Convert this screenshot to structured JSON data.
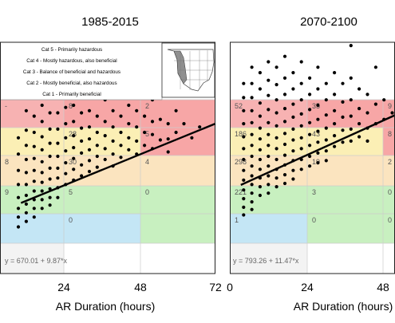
{
  "chart_data": [
    {
      "type": "scatter",
      "title": "1985-2015",
      "xlabel": "AR Duration (hours)",
      "ylabel": "",
      "xticks": [
        "24",
        "48",
        "72"
      ],
      "xlim": [
        -10,
        72
      ],
      "ylim": [
        0,
        2130
      ],
      "regression": {
        "label": "y = 670.01 + 9.87*x",
        "intercept": 670.01,
        "slope": 9.87
      },
      "legend": {
        "placement": "top-left",
        "entries": [
          "Cat 5 - Primarily hazardous",
          "Cat 4 - Mostly hazardous, also beneficial",
          "Cat 3 - Balance of beneficial and hazardous",
          "Cat 2 - Mostly beneficial, also hazardous",
          "Cat 1 - Primarily beneficial"
        ]
      },
      "cell_counts": [
        {
          "row": 5,
          "col": 0,
          "label": "-",
          "x": -9
        },
        {
          "row": 5,
          "col": 1,
          "label": "8",
          "x": 24
        },
        {
          "row": 5,
          "col": 2,
          "label": "2",
          "x": 48
        },
        {
          "row": 4,
          "col": 1,
          "label": "28",
          "x": 24
        },
        {
          "row": 4,
          "col": 2,
          "label": "5",
          "x": 48
        },
        {
          "row": 3,
          "col": 0,
          "label": "8",
          "x": -9
        },
        {
          "row": 3,
          "col": 1,
          "label": "30",
          "x": 24
        },
        {
          "row": 3,
          "col": 2,
          "label": "4",
          "x": 48
        },
        {
          "row": 2,
          "col": 0,
          "label": "9",
          "x": -9
        },
        {
          "row": 2,
          "col": 1,
          "label": "5",
          "x": 24
        },
        {
          "row": 2,
          "col": 2,
          "label": "0",
          "x": 48
        },
        {
          "row": 1,
          "col": 1,
          "label": "0",
          "x": 24
        }
      ],
      "points": [
        [
          -3,
          1250
        ],
        [
          -3,
          1100
        ],
        [
          -3,
          950
        ],
        [
          -3,
          820
        ],
        [
          -3,
          700
        ],
        [
          -3,
          600
        ],
        [
          -3,
          520
        ],
        [
          -3,
          430
        ],
        [
          0,
          1700
        ],
        [
          0,
          1500
        ],
        [
          0,
          1320
        ],
        [
          0,
          1180
        ],
        [
          0,
          1050
        ],
        [
          0,
          930
        ],
        [
          0,
          820
        ],
        [
          0,
          720
        ],
        [
          0,
          640
        ],
        [
          0,
          560
        ],
        [
          0,
          480
        ],
        [
          3,
          1850
        ],
        [
          3,
          1650
        ],
        [
          3,
          1450
        ],
        [
          3,
          1300
        ],
        [
          3,
          1170
        ],
        [
          3,
          1060
        ],
        [
          3,
          950
        ],
        [
          3,
          850
        ],
        [
          3,
          760
        ],
        [
          3,
          680
        ],
        [
          3,
          600
        ],
        [
          3,
          520
        ],
        [
          6,
          1750
        ],
        [
          6,
          1550
        ],
        [
          6,
          1400
        ],
        [
          6,
          1260
        ],
        [
          6,
          1140
        ],
        [
          6,
          1030
        ],
        [
          6,
          930
        ],
        [
          6,
          840
        ],
        [
          6,
          760
        ],
        [
          6,
          680
        ],
        [
          6,
          600
        ],
        [
          9,
          1850
        ],
        [
          9,
          1650
        ],
        [
          9,
          1480
        ],
        [
          9,
          1330
        ],
        [
          9,
          1200
        ],
        [
          9,
          1080
        ],
        [
          9,
          970
        ],
        [
          9,
          870
        ],
        [
          9,
          780
        ],
        [
          9,
          700
        ],
        [
          9,
          630
        ],
        [
          12,
          1650
        ],
        [
          12,
          1480
        ],
        [
          12,
          1330
        ],
        [
          12,
          1200
        ],
        [
          12,
          1080
        ],
        [
          12,
          970
        ],
        [
          12,
          880
        ],
        [
          12,
          790
        ],
        [
          12,
          700
        ],
        [
          15,
          1700
        ],
        [
          15,
          1530
        ],
        [
          15,
          1380
        ],
        [
          15,
          1250
        ],
        [
          15,
          1130
        ],
        [
          15,
          1020
        ],
        [
          15,
          920
        ],
        [
          15,
          820
        ],
        [
          18,
          1550
        ],
        [
          18,
          1400
        ],
        [
          18,
          1270
        ],
        [
          18,
          1160
        ],
        [
          18,
          1060
        ],
        [
          18,
          960
        ],
        [
          18,
          860
        ],
        [
          21,
          1650
        ],
        [
          21,
          1480
        ],
        [
          21,
          1340
        ],
        [
          21,
          1220
        ],
        [
          21,
          1110
        ],
        [
          21,
          1000
        ],
        [
          21,
          900
        ],
        [
          24,
          1500
        ],
        [
          24,
          1350
        ],
        [
          24,
          1240
        ],
        [
          24,
          1140
        ],
        [
          24,
          1040
        ],
        [
          24,
          940
        ],
        [
          27,
          1700
        ],
        [
          27,
          1450
        ],
        [
          27,
          1300
        ],
        [
          27,
          1180
        ],
        [
          27,
          1080
        ],
        [
          27,
          980
        ],
        [
          30,
          1600
        ],
        [
          30,
          1400
        ],
        [
          30,
          1270
        ],
        [
          30,
          1150
        ],
        [
          30,
          1050
        ],
        [
          33,
          1500
        ],
        [
          33,
          1350
        ],
        [
          33,
          1220
        ],
        [
          33,
          1100
        ],
        [
          33,
          990
        ],
        [
          36,
          1650
        ],
        [
          36,
          1450
        ],
        [
          36,
          1300
        ],
        [
          36,
          1180
        ],
        [
          36,
          1070
        ],
        [
          39,
          1550
        ],
        [
          39,
          1380
        ],
        [
          39,
          1250
        ],
        [
          39,
          1140
        ],
        [
          42,
          1800
        ],
        [
          42,
          1500
        ],
        [
          42,
          1350
        ],
        [
          42,
          1220
        ],
        [
          42,
          1100
        ],
        [
          45,
          1450
        ],
        [
          45,
          1300
        ],
        [
          45,
          1180
        ],
        [
          48,
          1600
        ],
        [
          48,
          1400
        ],
        [
          48,
          1280
        ],
        [
          48,
          1150
        ],
        [
          51,
          1700
        ],
        [
          51,
          1420
        ],
        [
          51,
          1230
        ],
        [
          54,
          1380
        ],
        [
          54,
          1240
        ],
        [
          54,
          1120
        ],
        [
          57,
          1500
        ],
        [
          57,
          1300
        ],
        [
          60,
          1650
        ],
        [
          60,
          1380
        ],
        [
          63,
          1250
        ],
        [
          66,
          1350
        ]
      ]
    },
    {
      "type": "scatter",
      "title": "2070-2100",
      "xlabel": "AR Duration (hours)",
      "ylabel": "",
      "xticks": [
        "0",
        "24",
        "48"
      ],
      "xlim": [
        -2,
        58
      ],
      "ylim": [
        0,
        2130
      ],
      "regression": {
        "label": "y = 793.26 + 11.47*x",
        "intercept": 793.26,
        "slope": 11.47
      },
      "cell_counts": [
        {
          "row": 5,
          "col": 0,
          "label": "52",
          "x": 0
        },
        {
          "row": 5,
          "col": 1,
          "label": "35",
          "x": 24
        },
        {
          "row": 5,
          "col": 2,
          "label": "9",
          "x": 48
        },
        {
          "row": 4,
          "col": 0,
          "label": "186",
          "x": 0
        },
        {
          "row": 4,
          "col": 1,
          "label": "43",
          "x": 24
        },
        {
          "row": 4,
          "col": 2,
          "label": "8",
          "x": 48
        },
        {
          "row": 3,
          "col": 0,
          "label": "298",
          "x": 0
        },
        {
          "row": 3,
          "col": 1,
          "label": "19",
          "x": 24
        },
        {
          "row": 3,
          "col": 2,
          "label": "2",
          "x": 48
        },
        {
          "row": 2,
          "col": 0,
          "label": "221",
          "x": 0
        },
        {
          "row": 2,
          "col": 1,
          "label": "3",
          "x": 24
        },
        {
          "row": 2,
          "col": 2,
          "label": "0",
          "x": 48
        },
        {
          "row": 1,
          "col": 0,
          "label": "1",
          "x": 0
        },
        {
          "row": 1,
          "col": 1,
          "label": "0",
          "x": 24
        },
        {
          "row": 1,
          "col": 2,
          "label": "0",
          "x": 48
        }
      ],
      "points": [
        [
          3,
          1750
        ],
        [
          3,
          1620
        ],
        [
          3,
          1500
        ],
        [
          3,
          1380
        ],
        [
          3,
          1260
        ],
        [
          3,
          1150
        ],
        [
          3,
          1050
        ],
        [
          3,
          950
        ],
        [
          3,
          860
        ],
        [
          3,
          770
        ],
        [
          3,
          690
        ],
        [
          3,
          610
        ],
        [
          3,
          540
        ],
        [
          6,
          1900
        ],
        [
          6,
          1750
        ],
        [
          6,
          1620
        ],
        [
          6,
          1500
        ],
        [
          6,
          1390
        ],
        [
          6,
          1280
        ],
        [
          6,
          1180
        ],
        [
          6,
          1080
        ],
        [
          6,
          990
        ],
        [
          6,
          900
        ],
        [
          6,
          820
        ],
        [
          6,
          740
        ],
        [
          6,
          660
        ],
        [
          6,
          590
        ],
        [
          9,
          1850
        ],
        [
          9,
          1700
        ],
        [
          9,
          1570
        ],
        [
          9,
          1450
        ],
        [
          9,
          1340
        ],
        [
          9,
          1240
        ],
        [
          9,
          1140
        ],
        [
          9,
          1050
        ],
        [
          9,
          960
        ],
        [
          9,
          880
        ],
        [
          9,
          800
        ],
        [
          9,
          720
        ],
        [
          12,
          1950
        ],
        [
          12,
          1780
        ],
        [
          12,
          1640
        ],
        [
          12,
          1510
        ],
        [
          12,
          1390
        ],
        [
          12,
          1280
        ],
        [
          12,
          1180
        ],
        [
          12,
          1080
        ],
        [
          12,
          990
        ],
        [
          12,
          900
        ],
        [
          12,
          820
        ],
        [
          12,
          740
        ],
        [
          15,
          1900
        ],
        [
          15,
          1740
        ],
        [
          15,
          1600
        ],
        [
          15,
          1480
        ],
        [
          15,
          1360
        ],
        [
          15,
          1250
        ],
        [
          15,
          1150
        ],
        [
          15,
          1050
        ],
        [
          15,
          960
        ],
        [
          15,
          880
        ],
        [
          15,
          800
        ],
        [
          18,
          2000
        ],
        [
          18,
          1800
        ],
        [
          18,
          1650
        ],
        [
          18,
          1520
        ],
        [
          18,
          1400
        ],
        [
          18,
          1290
        ],
        [
          18,
          1190
        ],
        [
          18,
          1090
        ],
        [
          18,
          1000
        ],
        [
          18,
          910
        ],
        [
          18,
          830
        ],
        [
          21,
          1850
        ],
        [
          21,
          1700
        ],
        [
          21,
          1560
        ],
        [
          21,
          1440
        ],
        [
          21,
          1330
        ],
        [
          21,
          1230
        ],
        [
          21,
          1130
        ],
        [
          21,
          1040
        ],
        [
          21,
          950
        ],
        [
          21,
          870
        ],
        [
          24,
          1950
        ],
        [
          24,
          1750
        ],
        [
          24,
          1600
        ],
        [
          24,
          1470
        ],
        [
          24,
          1360
        ],
        [
          24,
          1250
        ],
        [
          24,
          1150
        ],
        [
          24,
          1050
        ],
        [
          24,
          960
        ],
        [
          27,
          1800
        ],
        [
          27,
          1650
        ],
        [
          27,
          1510
        ],
        [
          27,
          1390
        ],
        [
          27,
          1280
        ],
        [
          27,
          1180
        ],
        [
          27,
          1080
        ],
        [
          27,
          990
        ],
        [
          30,
          1900
        ],
        [
          30,
          1700
        ],
        [
          30,
          1550
        ],
        [
          30,
          1420
        ],
        [
          30,
          1310
        ],
        [
          30,
          1210
        ],
        [
          30,
          1110
        ],
        [
          30,
          1020
        ],
        [
          33,
          1750
        ],
        [
          33,
          1600
        ],
        [
          33,
          1460
        ],
        [
          33,
          1340
        ],
        [
          33,
          1230
        ],
        [
          33,
          1130
        ],
        [
          33,
          1040
        ],
        [
          36,
          1850
        ],
        [
          36,
          1650
        ],
        [
          36,
          1500
        ],
        [
          36,
          1380
        ],
        [
          36,
          1270
        ],
        [
          36,
          1170
        ],
        [
          39,
          1750
        ],
        [
          39,
          1580
        ],
        [
          39,
          1440
        ],
        [
          39,
          1320
        ],
        [
          39,
          1210
        ],
        [
          42,
          2100
        ],
        [
          42,
          1800
        ],
        [
          42,
          1600
        ],
        [
          42,
          1450
        ],
        [
          42,
          1330
        ],
        [
          42,
          1220
        ],
        [
          45,
          1700
        ],
        [
          45,
          1520
        ],
        [
          45,
          1380
        ],
        [
          45,
          1260
        ],
        [
          48,
          1650
        ],
        [
          48,
          1480
        ],
        [
          48,
          1340
        ],
        [
          48,
          1220
        ],
        [
          51,
          1900
        ],
        [
          51,
          1560
        ],
        [
          51,
          1380
        ],
        [
          54,
          1600
        ],
        [
          54,
          1420
        ],
        [
          57,
          1480
        ]
      ]
    }
  ]
}
